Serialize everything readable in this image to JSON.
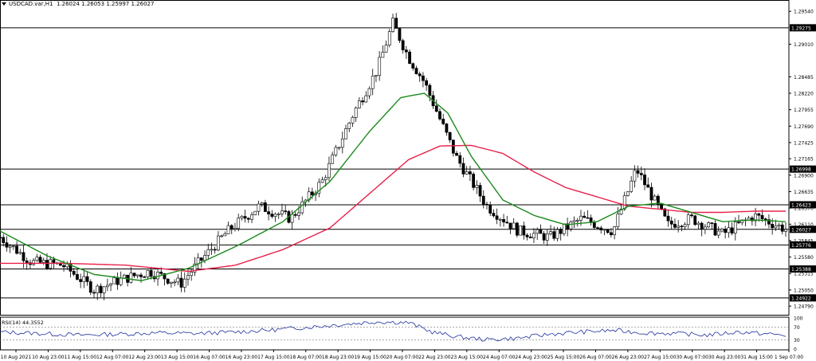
{
  "header": {
    "symbol": "USDCAD.var,H1",
    "ohlc": "1.26024 1.26053 1.25997 1.26027"
  },
  "rsi": {
    "label": "RSI(14) 44.3552",
    "levels": [
      "100",
      "70",
      "30",
      "0"
    ]
  },
  "colors": {
    "candle_up": "#000000",
    "candle_down": "#000000",
    "ma_fast": "#1a8a1a",
    "ma_slow": "#e8214a",
    "rsi_line": "#1f2f9c",
    "level_line": "#000000"
  },
  "chart_data": {
    "type": "candlestick",
    "symbol": "USDCAD",
    "timeframe": "H1",
    "ylim": [
      1.2465,
      1.2962
    ],
    "y_ticks": [
      "1.29540",
      "1.29010",
      "1.28485",
      "1.28220",
      "1.27955",
      "1.27690",
      "1.27425",
      "1.27165",
      "1.26900",
      "1.26635",
      "1.26370",
      "1.26110",
      "1.25845",
      "1.25580",
      "1.25315",
      "1.25050",
      "1.24790"
    ],
    "x_labels": [
      "10 Aug 2021",
      "10 Aug 23:00",
      "11 Aug 15:00",
      "12 Aug 07:00",
      "12 Aug 23:00",
      "13 Aug 15:00",
      "16 Aug 07:00",
      "16 Aug 23:00",
      "17 Aug 15:00",
      "18 Aug 07:00",
      "18 Aug 23:00",
      "19 Aug 15:00",
      "20 Aug 07:00",
      "22 Aug 23:00",
      "23 Aug 15:00",
      "24 Aug 07:00",
      "24 Aug 23:00",
      "25 Aug 15:00",
      "26 Aug 07:00",
      "26 Aug 23:00",
      "27 Aug 15:00",
      "30 Aug 07:00",
      "30 Aug 23:00",
      "31 Aug 15:00",
      "1 Sep 07:00"
    ],
    "price_path_x": [
      0,
      4,
      8,
      12,
      15,
      19,
      23,
      25,
      29,
      33,
      37,
      41,
      45,
      48,
      50,
      52,
      54,
      56,
      58,
      62,
      66,
      70,
      74,
      78,
      81,
      85,
      88,
      92,
      96,
      100
    ],
    "price_path_y": [
      1.259,
      1.255,
      1.2545,
      1.2505,
      1.252,
      1.2535,
      1.2515,
      1.2545,
      1.26,
      1.264,
      1.262,
      1.268,
      1.279,
      1.286,
      1.2935,
      1.288,
      1.284,
      1.278,
      1.272,
      1.264,
      1.26,
      1.259,
      1.262,
      1.26,
      1.27,
      1.261,
      1.262,
      1.2595,
      1.2625,
      1.2603
    ],
    "ma_fast_x": [
      0,
      6,
      12,
      18,
      24,
      30,
      36,
      42,
      47,
      51,
      54,
      57,
      60,
      64,
      68,
      72,
      76,
      80,
      84,
      88,
      92,
      96,
      100
    ],
    "ma_fast_y": [
      1.26,
      1.256,
      1.253,
      1.252,
      1.254,
      1.2575,
      1.2615,
      1.268,
      1.276,
      1.2815,
      1.2822,
      1.279,
      1.272,
      1.265,
      1.2625,
      1.261,
      1.2615,
      1.264,
      1.2645,
      1.263,
      1.2615,
      1.2618,
      1.2615
    ],
    "ma_slow_x": [
      0,
      8,
      16,
      24,
      30,
      36,
      42,
      47,
      52,
      56,
      60,
      64,
      68,
      72,
      76,
      80,
      84,
      88,
      92,
      96,
      100
    ],
    "ma_slow_y": [
      1.2548,
      1.2548,
      1.2545,
      1.2535,
      1.2545,
      1.257,
      1.2605,
      1.266,
      1.2715,
      1.2737,
      1.2738,
      1.2725,
      1.2695,
      1.267,
      1.2655,
      1.264,
      1.2635,
      1.263,
      1.263,
      1.2632,
      1.2632
    ],
    "levels": [
      {
        "value": 1.29275,
        "label": "1.29275"
      },
      {
        "value": 1.26998,
        "label": "1.26998"
      },
      {
        "value": 1.26423,
        "label": "1.26423"
      },
      {
        "value": 1.26027,
        "label": "1.26027"
      },
      {
        "value": 1.25776,
        "label": "1.25776"
      },
      {
        "value": 1.25388,
        "label": "1.25388"
      },
      {
        "value": 1.24922,
        "label": "1.24922"
      }
    ],
    "rsi_ylim": [
      0,
      100
    ],
    "rsi_x": [
      0,
      5,
      10,
      15,
      20,
      25,
      30,
      35,
      40,
      44,
      48,
      52,
      55,
      58,
      62,
      66,
      70,
      74,
      78,
      82,
      86,
      90,
      94,
      98,
      100
    ],
    "rsi_y": [
      55,
      50,
      45,
      48,
      52,
      50,
      55,
      62,
      72,
      80,
      88,
      85,
      55,
      40,
      30,
      35,
      48,
      55,
      60,
      52,
      50,
      45,
      55,
      48,
      44
    ]
  }
}
